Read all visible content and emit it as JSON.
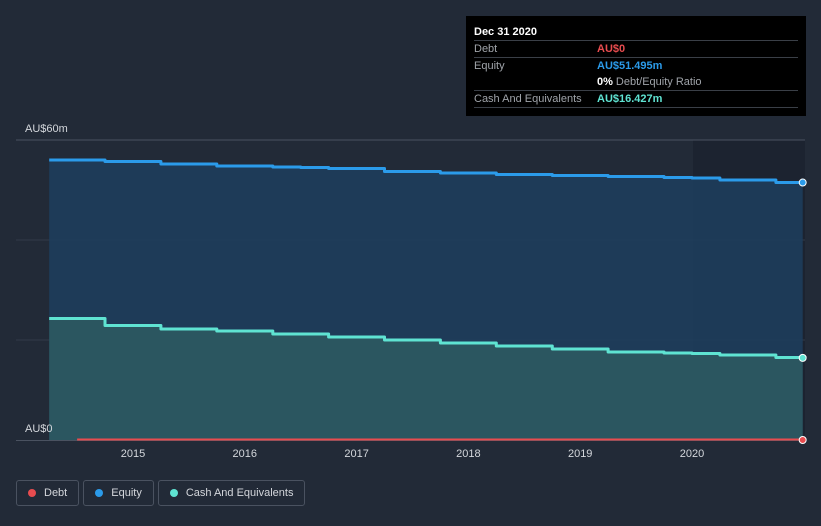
{
  "tooltip": {
    "date": "Dec 31 2020",
    "rows": [
      {
        "label": "Debt",
        "value": "AU$0",
        "color": "#e84c4f"
      },
      {
        "label": "Equity",
        "value": "AU$51.495m",
        "color": "#2b9bea"
      },
      {
        "ratio_value": "0%",
        "ratio_label": "Debt/Equity Ratio"
      },
      {
        "label": "Cash And Equivalents",
        "value": "AU$16.427m",
        "color": "#5fe3d2"
      }
    ]
  },
  "legend": [
    {
      "label": "Debt",
      "color": "#e84c4f"
    },
    {
      "label": "Equity",
      "color": "#2b9bea"
    },
    {
      "label": "Cash And Equivalents",
      "color": "#5fe3d2"
    }
  ],
  "chart_data": {
    "type": "area",
    "y_axis_labels": [
      "AU$60m",
      "AU$0"
    ],
    "ylim": [
      0,
      60
    ],
    "xlim": [
      2014.25,
      2020.99
    ],
    "x_ticks": [
      2015,
      2016,
      2017,
      2018,
      2019,
      2020
    ],
    "grid": true,
    "series": [
      {
        "name": "Equity",
        "color": "#2b9bea",
        "x": [
          2014.25,
          2014.5,
          2014.75,
          2015.0,
          2015.25,
          2015.5,
          2015.75,
          2016.0,
          2016.25,
          2016.5,
          2016.75,
          2017.0,
          2017.25,
          2017.5,
          2017.75,
          2018.0,
          2018.25,
          2018.5,
          2018.75,
          2019.0,
          2019.25,
          2019.5,
          2019.75,
          2020.0,
          2020.25,
          2020.5,
          2020.75,
          2020.99
        ],
        "y": [
          56.0,
          56.0,
          55.7,
          55.7,
          55.2,
          55.2,
          54.8,
          54.8,
          54.6,
          54.5,
          54.3,
          54.3,
          53.7,
          53.7,
          53.4,
          53.4,
          53.1,
          53.1,
          52.9,
          52.9,
          52.7,
          52.7,
          52.5,
          52.4,
          52.0,
          52.0,
          51.5,
          51.495
        ]
      },
      {
        "name": "Cash And Equivalents",
        "color": "#5fe3d2",
        "x": [
          2014.25,
          2014.5,
          2014.75,
          2015.0,
          2015.25,
          2015.5,
          2015.75,
          2016.0,
          2016.25,
          2016.5,
          2016.75,
          2017.0,
          2017.25,
          2017.5,
          2017.75,
          2018.0,
          2018.25,
          2018.5,
          2018.75,
          2019.0,
          2019.25,
          2019.5,
          2019.75,
          2020.0,
          2020.25,
          2020.5,
          2020.75,
          2020.99
        ],
        "y": [
          24.3,
          24.3,
          22.9,
          22.9,
          22.2,
          22.2,
          21.8,
          21.8,
          21.2,
          21.2,
          20.6,
          20.6,
          20.0,
          20.0,
          19.4,
          19.4,
          18.8,
          18.8,
          18.2,
          18.2,
          17.6,
          17.6,
          17.4,
          17.3,
          17.0,
          17.0,
          16.5,
          16.427
        ]
      },
      {
        "name": "Debt",
        "color": "#e84c4f",
        "x": [
          2014.5,
          2020.99
        ],
        "y": [
          0,
          0
        ]
      }
    ]
  }
}
